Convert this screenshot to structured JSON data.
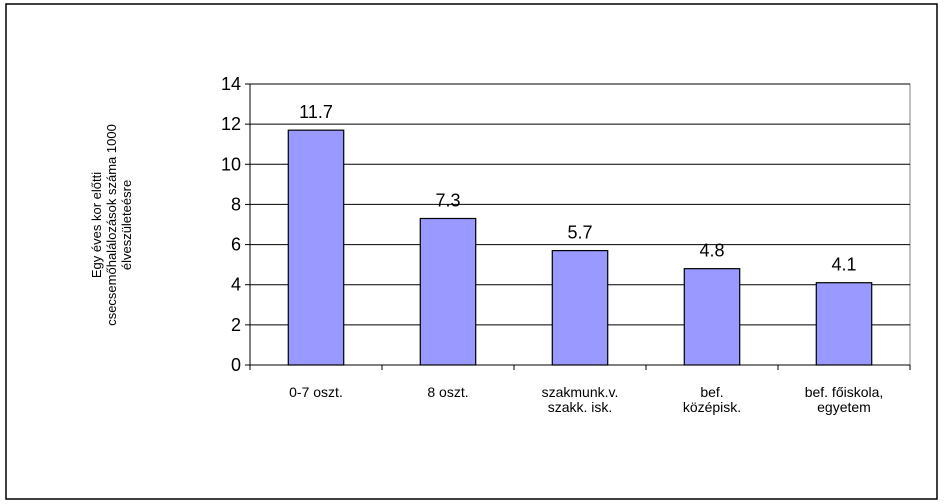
{
  "chart_data": {
    "type": "bar",
    "y_axis_label": "Egy éves kor előtti\ncsecsemőhalálozások száma 1000\nélveszületeésre",
    "categories": [
      "0-7 oszt.",
      "8 oszt.",
      "szakmunk.v.\nszakk. isk.",
      "bef.\nközépisk.",
      "bef. főiskola,\negyetem"
    ],
    "values": [
      11.7,
      7.3,
      5.7,
      4.8,
      4.1
    ],
    "color": "#9999ff",
    "ylim": [
      0,
      14
    ],
    "yticks": [
      0,
      2,
      4,
      6,
      8,
      10,
      12,
      14
    ],
    "grid": true
  }
}
